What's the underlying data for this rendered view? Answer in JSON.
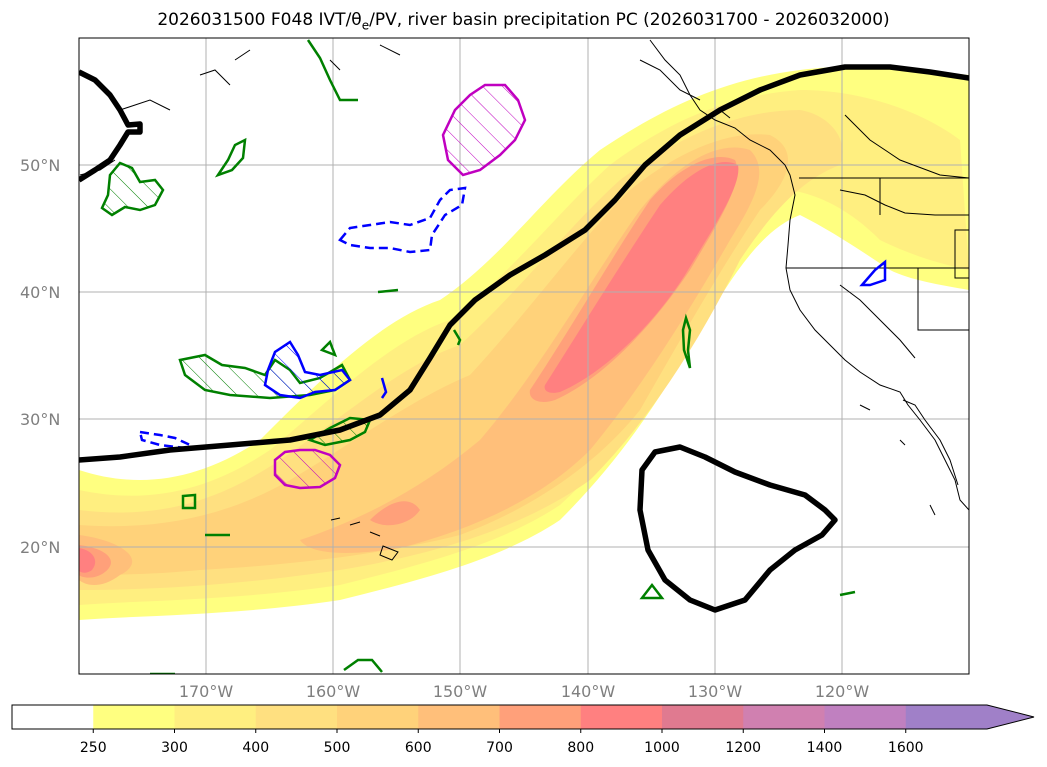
{
  "title": {
    "prefix": "2026031500 F048 IVT/θ",
    "theta_subscript": "e",
    "suffix": "/PV, river basin precipitation PC (2026031700 - 2026032000)"
  },
  "map": {
    "lat_labels": [
      "50°N",
      "40°N",
      "30°N",
      "20°N"
    ],
    "lon_labels": [
      "170°W",
      "160°W",
      "150°W",
      "140°W",
      "130°W",
      "120°W"
    ],
    "lon_range": [
      -180,
      -110
    ],
    "lat_range": [
      10,
      60
    ]
  },
  "colorbar": {
    "ticks": [
      "250",
      "300",
      "400",
      "500",
      "600",
      "700",
      "800",
      "1000",
      "1200",
      "1400",
      "1600"
    ],
    "colors": [
      "#ffffff",
      "#ffff80",
      "#ffef80",
      "#ffe080",
      "#ffd27a",
      "#ffbf7a",
      "#ffa07a",
      "#ff8080",
      "#e07a90",
      "#d080b0",
      "#c080c0",
      "#a080c8"
    ]
  }
}
